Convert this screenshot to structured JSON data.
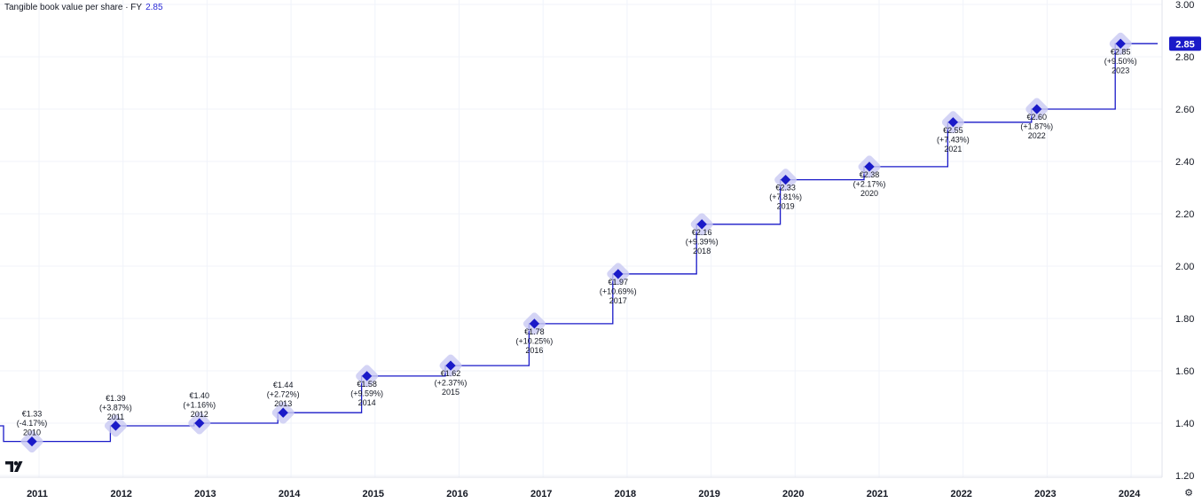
{
  "legend": {
    "title": "Tangible book value per share · FY",
    "value": "2.85"
  },
  "last_value_badge": "2.85",
  "colors": {
    "line": "#1a1ac8",
    "marker": "#1a1ac8",
    "halo": "#c9c9f2",
    "badge": "#1a1ac8",
    "grid": "#f0f3fa",
    "text": "#131722"
  },
  "icons": {
    "logo": "tradingview-logo-icon",
    "settings": "gear-icon"
  },
  "chart_data": {
    "type": "line",
    "step": true,
    "title": "Tangible book value per share · FY",
    "x_tick_labels": [
      "2011",
      "2012",
      "2013",
      "2014",
      "2015",
      "2016",
      "2017",
      "2018",
      "2019",
      "2020",
      "2021",
      "2022",
      "2023",
      "2024"
    ],
    "y_tick_labels": [
      "1.20",
      "1.40",
      "1.60",
      "1.80",
      "2.00",
      "2.20",
      "2.40",
      "2.60",
      "2.80",
      "3.00"
    ],
    "ylim": [
      1.2,
      3.0
    ],
    "grid": true,
    "points": [
      {
        "year": "2010",
        "value": 1.33,
        "price": "€1.33",
        "change": "(-4.17%)"
      },
      {
        "year": "2011",
        "value": 1.39,
        "price": "€1.39",
        "change": "(+3.87%)"
      },
      {
        "year": "2012",
        "value": 1.4,
        "price": "€1.40",
        "change": "(+1.16%)"
      },
      {
        "year": "2013",
        "value": 1.44,
        "price": "€1.44",
        "change": "(+2.72%)"
      },
      {
        "year": "2014",
        "value": 1.58,
        "price": "€1.58",
        "change": "(+9.59%)"
      },
      {
        "year": "2015",
        "value": 1.62,
        "price": "€1.62",
        "change": "(+2.37%)"
      },
      {
        "year": "2016",
        "value": 1.78,
        "price": "€1.78",
        "change": "(+10.25%)"
      },
      {
        "year": "2017",
        "value": 1.97,
        "price": "€1.97",
        "change": "(+10.69%)"
      },
      {
        "year": "2018",
        "value": 2.16,
        "price": "€2.16",
        "change": "(+9.39%)"
      },
      {
        "year": "2019",
        "value": 2.33,
        "price": "€2.33",
        "change": "(+7.81%)"
      },
      {
        "year": "2020",
        "value": 2.38,
        "price": "€2.38",
        "change": "(+2.17%)"
      },
      {
        "year": "2021",
        "value": 2.55,
        "price": "€2.55",
        "change": "(+7.43%)"
      },
      {
        "year": "2022",
        "value": 2.6,
        "price": "€2.60",
        "change": "(+1.87%)"
      },
      {
        "year": "2023",
        "value": 2.85,
        "price": "€2.85",
        "change": "(+9.50%)"
      }
    ]
  }
}
